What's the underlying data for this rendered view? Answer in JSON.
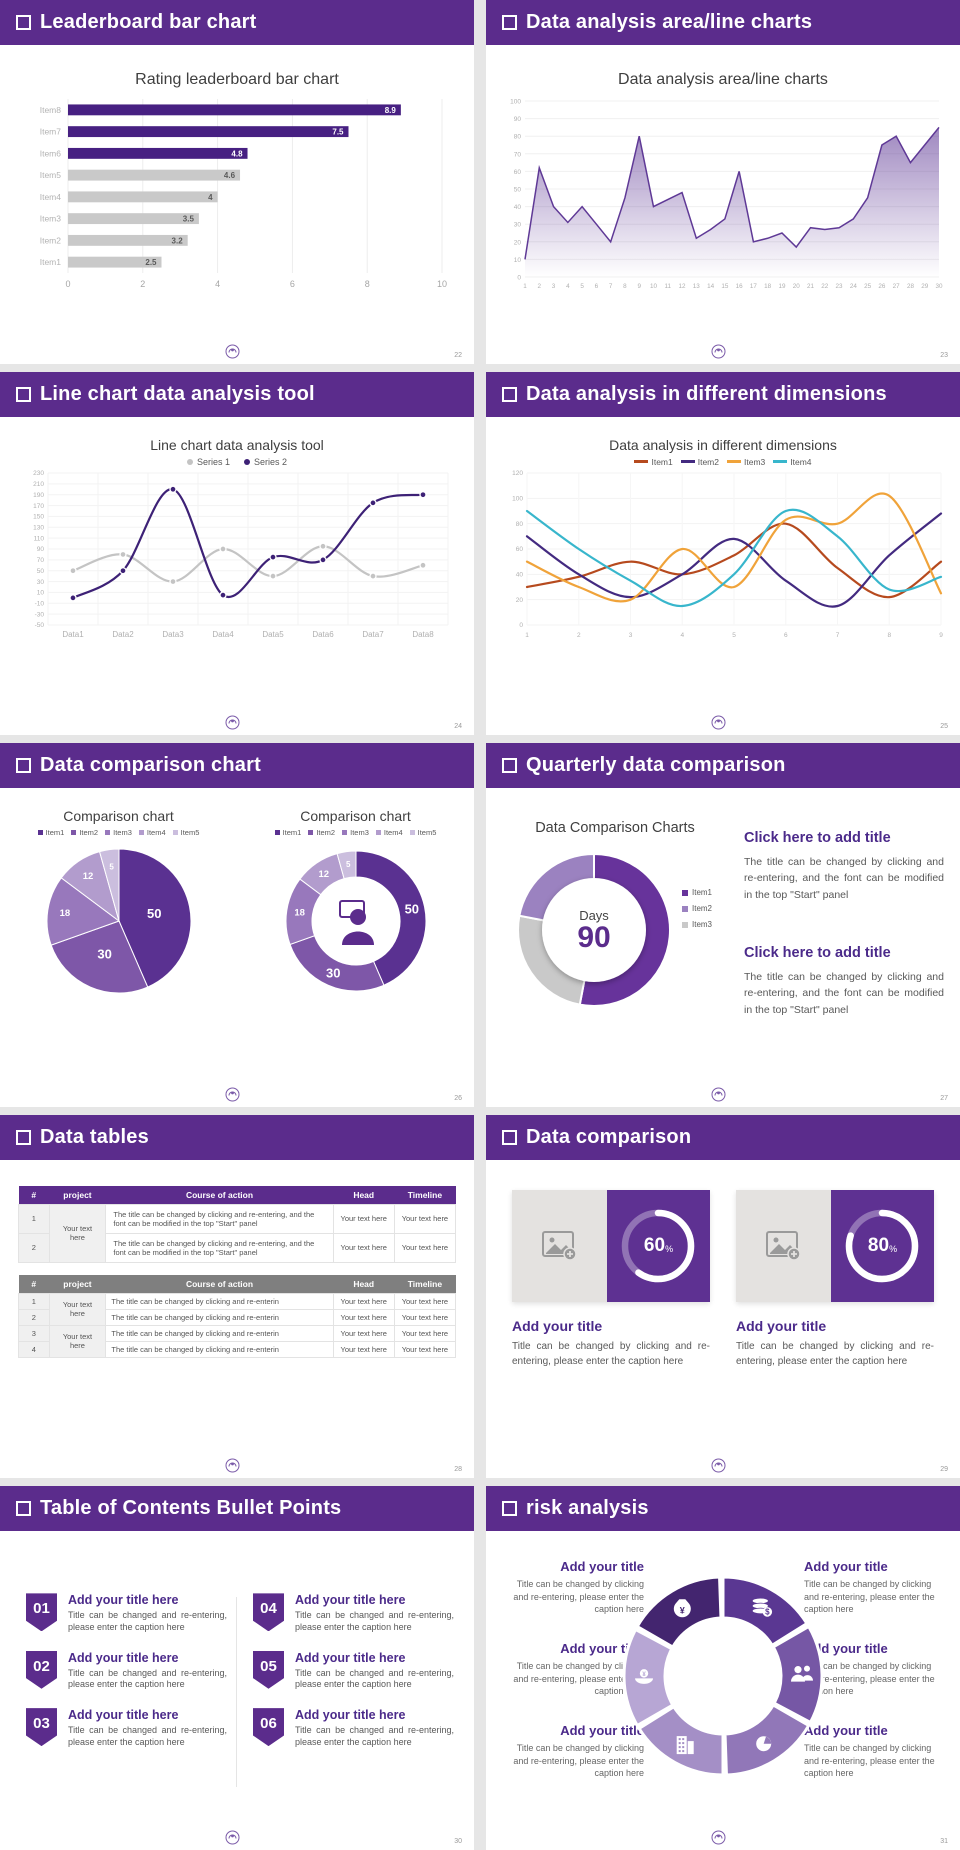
{
  "slides": {
    "s1": {
      "header": "Leaderboard bar chart",
      "page": "22",
      "chart_title": "Rating leaderboard bar chart"
    },
    "s2": {
      "header": "Data analysis area/line charts",
      "page": "23",
      "chart_title": "Data analysis area/line charts"
    },
    "s3": {
      "header": "Line chart data analysis tool",
      "page": "24",
      "chart_title": "Line chart data analysis tool",
      "legend": [
        "Series 1",
        "Series 2"
      ]
    },
    "s4": {
      "header": "Data analysis in different dimensions",
      "page": "25",
      "chart_title": "Data analysis in different dimensions",
      "legend": [
        "Item1",
        "Item2",
        "Item3",
        "Item4"
      ]
    },
    "s5": {
      "header": "Data comparison chart",
      "page": "26",
      "left": {
        "title": "Comparison chart",
        "legend": [
          "Item1",
          "Item2",
          "Item3",
          "Item4",
          "Item5"
        ]
      },
      "right": {
        "title": "Comparison chart",
        "legend": [
          "Item1",
          "Item2",
          "Item3",
          "Item4",
          "Item5"
        ]
      }
    },
    "s6": {
      "header": "Quarterly data comparison",
      "page": "27",
      "chart_title": "Data Comparison Charts",
      "center_label": "Days",
      "center_value": "90",
      "legend": [
        "Item1",
        "Item2",
        "Item3"
      ],
      "blocks": [
        {
          "title": "Click here to add title",
          "body": "The title can be changed by clicking and re-entering, and the font can be modified in the top \"Start\" panel"
        },
        {
          "title": "Click here to add title",
          "body": "The title can be changed by clicking and re-entering, and the font can be modified in the top \"Start\" panel"
        }
      ]
    },
    "s7": {
      "header": "Data tables",
      "page": "28",
      "table1": {
        "headers": [
          "#",
          "project",
          "Course of action",
          "Head",
          "Timeline"
        ],
        "merged_project": "Your text here",
        "rows": [
          {
            "num": "1",
            "course": "The title can be changed by clicking and re-entering, and the font can be modified in the top \"Start\" panel",
            "head": "Your text here",
            "timeline": "Your text here"
          },
          {
            "num": "2",
            "course": "The title can be changed by clicking and re-entering, and the font can be modified in the top \"Start\" panel",
            "head": "Your text here",
            "timeline": "Your text here"
          }
        ]
      },
      "table2": {
        "headers": [
          "#",
          "project",
          "Course of action",
          "Head",
          "Timeline"
        ],
        "merged_project_a": "Your text here",
        "merged_project_b": "Your text here",
        "rows": [
          {
            "num": "1",
            "course": "The title can be changed by clicking and re-enterin",
            "head": "Your text here",
            "timeline": "Your text here"
          },
          {
            "num": "2",
            "course": "The title can be changed by clicking and re-enterin",
            "head": "Your text here",
            "timeline": "Your text here"
          },
          {
            "num": "3",
            "course": "The title can be changed by clicking and re-enterin",
            "head": "Your text here",
            "timeline": "Your text here"
          },
          {
            "num": "4",
            "course": "The title can be changed by clicking and re-enterin",
            "head": "Your text here",
            "timeline": "Your text here"
          }
        ]
      }
    },
    "s8": {
      "header": "Data comparison",
      "page": "29",
      "cards": [
        {
          "percent": "60",
          "unit": "%",
          "title": "Add your title",
          "body": "Title can be changed by clicking and re-entering, please enter the caption here"
        },
        {
          "percent": "80",
          "unit": "%",
          "title": "Add your title",
          "body": "Title can be changed by clicking and re-entering, please enter the caption here"
        }
      ]
    },
    "s9": {
      "header": "Table of Contents Bullet Points",
      "page": "30",
      "items": [
        {
          "num": "01",
          "title": "Add your title here",
          "body": "Title can be changed and re-entering, please enter the caption here"
        },
        {
          "num": "02",
          "title": "Add your title here",
          "body": "Title can be changed and re-entering, please enter the caption here"
        },
        {
          "num": "03",
          "title": "Add your title here",
          "body": "Title can be changed and re-entering, please enter the caption here"
        },
        {
          "num": "04",
          "title": "Add your title here",
          "body": "Title can be changed and re-entering, please enter the caption here"
        },
        {
          "num": "05",
          "title": "Add your title here",
          "body": "Title can be changed and re-entering, please enter the caption here"
        },
        {
          "num": "06",
          "title": "Add your title here",
          "body": "Title can be changed and re-entering, please enter the caption here"
        }
      ]
    },
    "s10": {
      "header": "risk analysis",
      "page": "31",
      "blocks": [
        {
          "title": "Add your title",
          "body": "Title can be changed by clicking and re-entering, please enter the caption here"
        },
        {
          "title": "Add your title",
          "body": "Title can be changed by clicking and re-entering, please enter the caption here"
        },
        {
          "title": "Add your title",
          "body": "Title can be changed by clicking and re-entering, please enter the caption here"
        },
        {
          "title": "Add your title",
          "body": "Title can be changed by clicking and re-entering, please enter the caption here"
        },
        {
          "title": "Add your title",
          "body": "Title can be changed by clicking and re-entering, please enter the caption here"
        },
        {
          "title": "Add your title",
          "body": "Title can be changed by clicking and re-entering, please enter the caption here"
        }
      ]
    }
  },
  "chart_data": [
    {
      "type": "bar",
      "orientation": "horizontal",
      "title": "Rating leaderboard bar chart",
      "categories": [
        "Item1",
        "Item2",
        "Item3",
        "Item4",
        "Item5",
        "Item6",
        "Item7",
        "Item8"
      ],
      "values": [
        2.5,
        3.2,
        3.5,
        4,
        4.6,
        4.8,
        7.5,
        8.9
      ],
      "colors": [
        "#c9c9c9",
        "#c9c9c9",
        "#c9c9c9",
        "#c9c9c9",
        "#c9c9c9",
        "#472082",
        "#472082",
        "#472082"
      ],
      "label_colors": [
        "#595959",
        "#595959",
        "#595959",
        "#595959",
        "#595959",
        "#ffffff",
        "#ffffff",
        "#ffffff"
      ],
      "xlim": [
        0,
        10
      ],
      "xticks": [
        0,
        2,
        4,
        6,
        8,
        10
      ]
    },
    {
      "type": "area",
      "title": "Data analysis area/line charts",
      "color": "#5f3996",
      "x": [
        1,
        2,
        3,
        4,
        5,
        6,
        7,
        8,
        9,
        10,
        11,
        12,
        13,
        14,
        15,
        16,
        17,
        18,
        19,
        20,
        21,
        22,
        23,
        24,
        25,
        26,
        27,
        28,
        29,
        30
      ],
      "values": [
        10,
        62,
        40,
        31,
        40,
        30,
        20,
        45,
        80,
        40,
        44,
        48,
        22,
        27,
        33,
        60,
        20,
        22,
        25,
        17,
        28,
        27,
        28,
        33,
        45,
        75,
        80,
        65,
        75,
        85
      ],
      "ylim": [
        0,
        100
      ],
      "ytick_step": 10
    },
    {
      "type": "line",
      "title": "Line chart data analysis tool",
      "markers": true,
      "categories": [
        "Data1",
        "Data2",
        "Data3",
        "Data4",
        "Data5",
        "Data6",
        "Data7",
        "Data8"
      ],
      "ylim": [
        -50,
        230
      ],
      "ytick_step": 20,
      "series": [
        {
          "name": "Series 1",
          "color": "#c4c4c4",
          "values": [
            50,
            80,
            30,
            90,
            40,
            95,
            40,
            60
          ]
        },
        {
          "name": "Series 2",
          "color": "#3d2176",
          "values": [
            0,
            50,
            200,
            5,
            75,
            70,
            175,
            190
          ]
        }
      ]
    },
    {
      "type": "line",
      "title": "Data analysis in different dimensions",
      "markers": false,
      "x": [
        1,
        2,
        3,
        4,
        5,
        6,
        7,
        8,
        9
      ],
      "ylim": [
        0,
        120
      ],
      "ytick_step": 20,
      "series": [
        {
          "name": "Item1",
          "color": "#b64a1e",
          "values": [
            30,
            38,
            50,
            40,
            55,
            80,
            45,
            22,
            50
          ]
        },
        {
          "name": "Item2",
          "color": "#432a80",
          "values": [
            70,
            40,
            22,
            40,
            68,
            35,
            15,
            55,
            88
          ]
        },
        {
          "name": "Item3",
          "color": "#f0a33a",
          "values": [
            50,
            30,
            20,
            60,
            30,
            83,
            80,
            102,
            25
          ]
        },
        {
          "name": "Item4",
          "color": "#38b6cc",
          "values": [
            90,
            60,
            35,
            15,
            40,
            90,
            70,
            28,
            38
          ]
        }
      ]
    },
    {
      "type": "pie",
      "title": "Comparison chart",
      "labels": [
        "Item1",
        "Item2",
        "Item3",
        "Item4",
        "Item5"
      ],
      "values": [
        50,
        30,
        18,
        12,
        5
      ],
      "colors": [
        "#5a3191",
        "#7e57a8",
        "#9878bc",
        "#b29ccd",
        "#cbbede"
      ]
    },
    {
      "type": "pie",
      "donut": true,
      "center_icon": "person",
      "title": "Comparison chart",
      "labels": [
        "Item1",
        "Item2",
        "Item3",
        "Item4",
        "Item5"
      ],
      "values": [
        50,
        30,
        18,
        12,
        5
      ],
      "colors": [
        "#5a3191",
        "#7e57a8",
        "#9878bc",
        "#b29ccd",
        "#cbbede"
      ]
    },
    {
      "type": "ring",
      "title": "Data Comparison Charts",
      "labels": [
        "Item1",
        "Item2",
        "Item3"
      ],
      "values": [
        53,
        25,
        22
      ],
      "colors": [
        "#67339b",
        "#c9c9c9",
        "#9b82c0"
      ],
      "legend_colors": [
        "#67339b",
        "#9b82c0",
        "#c9c9c9"
      ],
      "center_label": "Days",
      "center_value": "90"
    },
    {
      "type": "progress",
      "value": 60,
      "color": "#ffffff"
    },
    {
      "type": "progress",
      "value": 80,
      "color": "#ffffff"
    },
    {
      "type": "pinwheel",
      "colors": [
        "#43256f",
        "#5a3792",
        "#7657a5",
        "#9177b8",
        "#a48fc6",
        "#b7a6d4"
      ],
      "icons": [
        "money-bag",
        "coins",
        "people",
        "pie",
        "building",
        "savings"
      ]
    }
  ]
}
